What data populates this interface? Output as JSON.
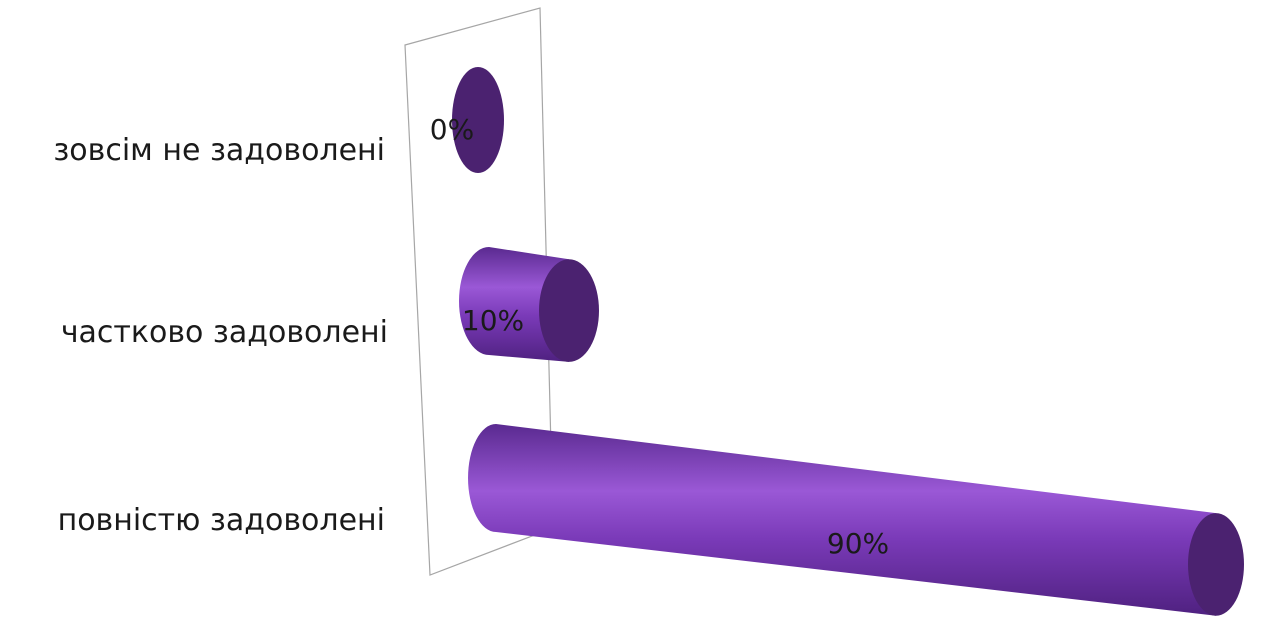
{
  "chart_data": {
    "type": "bar",
    "orientation": "horizontal",
    "style": "3d-cylinder",
    "categories": [
      "зовсім не задоволені",
      "частково задоволені",
      "повністю задоволені"
    ],
    "values": [
      0,
      10,
      90
    ],
    "data_labels": [
      "0%",
      "10%",
      "90%"
    ],
    "unit": "%",
    "xlim": [
      0,
      100
    ],
    "title": "",
    "xlabel": "",
    "ylabel": "",
    "grid": false,
    "legend": "none",
    "colors": {
      "bar_body": "#7a3ab8",
      "bar_light": "#9a58d6",
      "bar_dark": "#4f2180",
      "bar_cap": "#4b2270",
      "wall_stroke": "#a6a6a6"
    }
  }
}
